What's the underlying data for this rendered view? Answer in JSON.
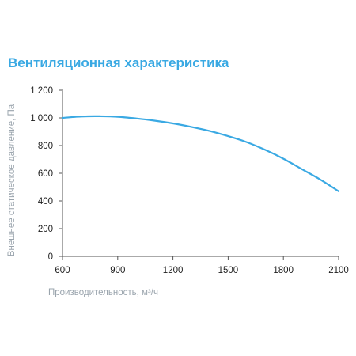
{
  "title": "Вентиляционная характеристика",
  "chart_data": {
    "type": "line",
    "title": "Вентиляционная характеристика",
    "xlabel": "Производительность, м³/ч",
    "ylabel": "Внешнее статическое давление, Па",
    "xlim": [
      600,
      2100
    ],
    "ylim": [
      0,
      1200
    ],
    "x_ticks": [
      600,
      900,
      1200,
      1500,
      1800,
      2100
    ],
    "y_ticks": [
      0,
      200,
      400,
      600,
      800,
      1000,
      1200
    ],
    "x_tick_labels": [
      "600",
      "900",
      "1200",
      "1500",
      "1800",
      "2100"
    ],
    "y_tick_labels": [
      "0",
      "200",
      "400",
      "600",
      "800",
      "1 000",
      "1 200"
    ],
    "grid": false,
    "series": [
      {
        "color": "#3aa9e3",
        "x": [
          600,
          700,
          800,
          900,
          1000,
          1100,
          1200,
          1300,
          1400,
          1500,
          1600,
          1700,
          1800,
          1900,
          2000,
          2100
        ],
        "y": [
          1000,
          1010,
          1012,
          1008,
          996,
          980,
          960,
          935,
          905,
          868,
          825,
          770,
          705,
          630,
          555,
          470
        ]
      }
    ]
  }
}
